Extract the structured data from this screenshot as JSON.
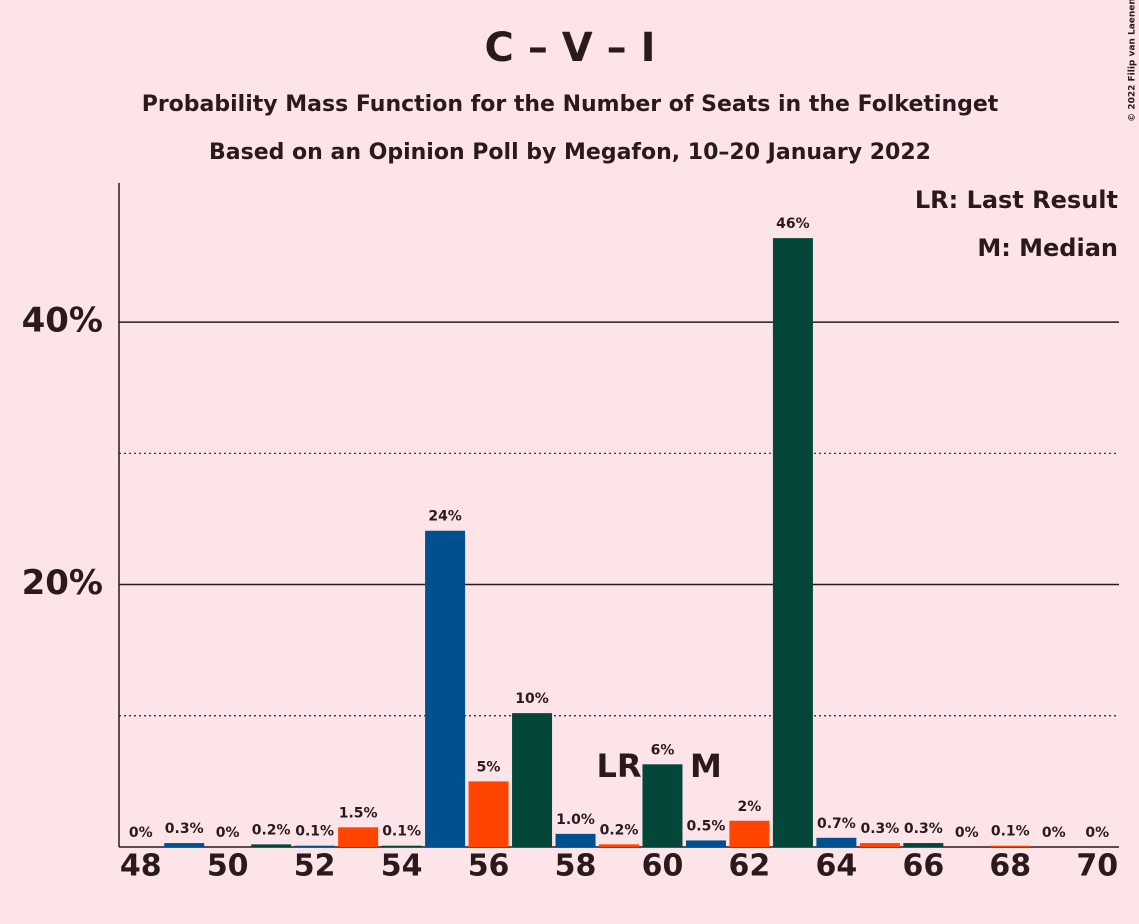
{
  "chart_data": {
    "type": "bar",
    "title": "C – V – I",
    "subtitle": [
      "Probability Mass Function for the Number of Seats in the Folketinget",
      "Based on an Opinion Poll by Megafon, 10–20 January 2022"
    ],
    "copyright": "© 2022 Filip van Laenen",
    "x": [
      48,
      49,
      50,
      51,
      52,
      53,
      54,
      55,
      56,
      57,
      58,
      59,
      60,
      61,
      62,
      63,
      64,
      65,
      66,
      67,
      68,
      69,
      70
    ],
    "values": [
      0,
      0.3,
      0,
      0.2,
      0.1,
      1.5,
      0.1,
      24.1,
      5.0,
      10.2,
      1.0,
      0.2,
      6.3,
      0.5,
      2.0,
      46.4,
      0.7,
      0.3,
      0.3,
      0,
      0.1,
      0,
      0
    ],
    "value_labels": [
      "0%",
      "0.3%",
      "0%",
      "0.2%",
      "0.1%",
      "1.5%",
      "0.1%",
      "24%",
      "5%",
      "10%",
      "1.0%",
      "0.2%",
      "6%",
      "0.5%",
      "2%",
      "46%",
      "0.7%",
      "0.3%",
      "0.3%",
      "0%",
      "0.1%",
      "0%",
      "0%"
    ],
    "colors": [
      "#00508f",
      "#ff4500",
      "#04473a"
    ],
    "xlim": [
      47.5,
      70.5
    ],
    "xticks": [
      48,
      50,
      52,
      54,
      56,
      58,
      60,
      62,
      64,
      66,
      68,
      70
    ],
    "ylim": [
      0,
      50.6
    ],
    "yticks": [
      {
        "value": 20,
        "label": "20%"
      },
      {
        "value": 40,
        "label": "40%"
      }
    ],
    "minor_yticks": [
      10,
      30
    ],
    "annotations": [
      {
        "label": "LR",
        "x": 59
      },
      {
        "label": "M",
        "x": 61
      }
    ],
    "legend": [
      "LR: Last Result",
      "M: Median"
    ],
    "legend_position": "upper right"
  }
}
